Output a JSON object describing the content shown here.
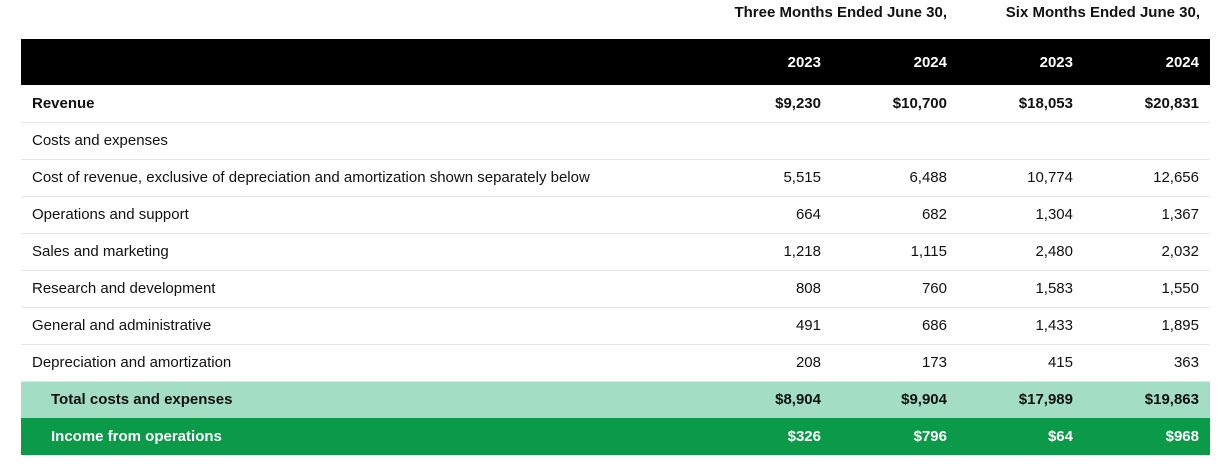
{
  "periods": {
    "three_months": "Three Months Ended June 30,",
    "six_months": "Six Months Ended June 30,"
  },
  "years": [
    "2023",
    "2024",
    "2023",
    "2024"
  ],
  "rows": [
    {
      "label": "Revenue",
      "values": [
        "$9,230",
        "$10,700",
        "$18,053",
        "$20,831"
      ]
    },
    {
      "label": "Costs and expenses",
      "values": [
        "",
        "",
        "",
        ""
      ]
    },
    {
      "label": "Cost of revenue, exclusive of depreciation and amortization shown separately below",
      "values": [
        "5,515",
        "6,488",
        "10,774",
        "12,656"
      ]
    },
    {
      "label": "Operations and support",
      "values": [
        "664",
        "682",
        "1,304",
        "1,367"
      ]
    },
    {
      "label": "Sales and marketing",
      "values": [
        "1,218",
        "1,115",
        "2,480",
        "2,032"
      ]
    },
    {
      "label": "Research and development",
      "values": [
        "808",
        "760",
        "1,583",
        "1,550"
      ]
    },
    {
      "label": "General and administrative",
      "values": [
        "491",
        "686",
        "1,433",
        "1,895"
      ]
    },
    {
      "label": "Depreciation and amortization",
      "values": [
        "208",
        "173",
        "415",
        "363"
      ]
    },
    {
      "label": "Total costs and expenses",
      "values": [
        "$8,904",
        "$9,904",
        "$17,989",
        "$19,863"
      ]
    },
    {
      "label": "Income from operations",
      "values": [
        "$326",
        "$796",
        "$64",
        "$968"
      ]
    }
  ],
  "colors": {
    "header_bg": "#000000",
    "total_bg": "#a3dec4",
    "income_bg": "#0a9a48"
  }
}
